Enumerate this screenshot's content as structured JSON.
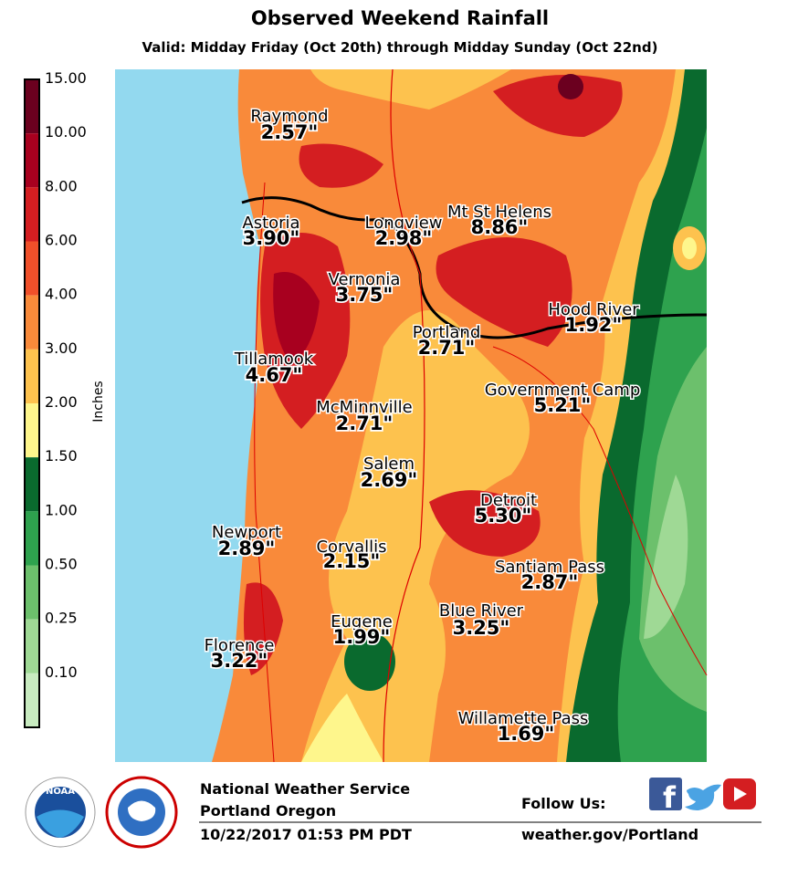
{
  "title": "Observed Weekend Rainfall",
  "subtitle": "Valid: Midday Friday (Oct 20th) through Midday Sunday (Oct 22nd)",
  "legend": {
    "unit": "Inches",
    "labels": [
      "15.00",
      "10.00",
      "8.00",
      "6.00",
      "4.00",
      "3.00",
      "2.00",
      "1.50",
      "1.00",
      "0.50",
      "0.25",
      "0.10"
    ],
    "colors": [
      "#6b001f",
      "#a8001f",
      "#d41e21",
      "#f0502a",
      "#f98a3a",
      "#fdc24e",
      "#fef68c",
      "#0a6a2e",
      "#2ea24e",
      "#6cc06c",
      "#9fd995",
      "#c8ebc0"
    ]
  },
  "stations": [
    {
      "name": "Raymond",
      "value": "2.57\""
    },
    {
      "name": "Astoria",
      "value": "3.90\""
    },
    {
      "name": "Longview",
      "value": "2.98\""
    },
    {
      "name": "Mt St Helens",
      "value": "8.86\""
    },
    {
      "name": "Vernonia",
      "value": "3.75\""
    },
    {
      "name": "Hood River",
      "value": "1.92\""
    },
    {
      "name": "Portland",
      "value": "2.71\""
    },
    {
      "name": "Tillamook",
      "value": "4.67\""
    },
    {
      "name": "Government Camp",
      "value": "5.21\""
    },
    {
      "name": "McMinnville",
      "value": "2.71\""
    },
    {
      "name": "Salem",
      "value": "2.69\""
    },
    {
      "name": "Detroit",
      "value": "5.30\""
    },
    {
      "name": "Newport",
      "value": "2.89\""
    },
    {
      "name": "Corvallis",
      "value": "2.15\""
    },
    {
      "name": "Santiam Pass",
      "value": "2.87\""
    },
    {
      "name": "Blue River",
      "value": "3.25\""
    },
    {
      "name": "Eugene",
      "value": "1.99\""
    },
    {
      "name": "Florence",
      "value": "3.22\""
    },
    {
      "name": "Willamette Pass",
      "value": "1.69\""
    }
  ],
  "footer": {
    "agency": "National Weather Service",
    "office": "Portland Oregon",
    "timestamp": "10/22/2017 01:53 PM PDT",
    "follow": "Follow Us:",
    "website": "weather.gov/Portland"
  }
}
